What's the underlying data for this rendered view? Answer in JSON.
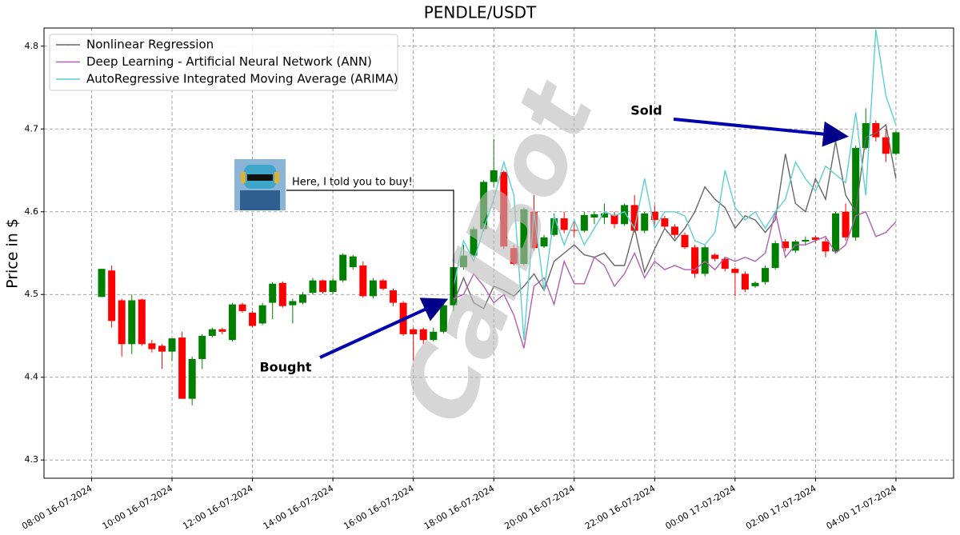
{
  "chart_data": {
    "type": "candlestick",
    "title": "PENDLE/USDT",
    "y_label": "Price in $",
    "watermark": "CalBot",
    "annotations": [
      {
        "text": "Sold"
      },
      {
        "text": "Bought"
      },
      {
        "text": "Here, I told you to buy!"
      }
    ],
    "x": [
      "2024-07-16 08:15",
      "2024-07-16 08:30",
      "2024-07-16 08:45",
      "2024-07-16 09:00",
      "2024-07-16 09:15",
      "2024-07-16 09:30",
      "2024-07-16 09:45",
      "2024-07-16 10:00",
      "2024-07-16 10:15",
      "2024-07-16 10:30",
      "2024-07-16 10:45",
      "2024-07-16 11:00",
      "2024-07-16 11:15",
      "2024-07-16 11:30",
      "2024-07-16 11:45",
      "2024-07-16 12:00",
      "2024-07-16 12:15",
      "2024-07-16 12:30",
      "2024-07-16 12:45",
      "2024-07-16 13:00",
      "2024-07-16 13:15",
      "2024-07-16 13:30",
      "2024-07-16 13:45",
      "2024-07-16 14:00",
      "2024-07-16 14:15",
      "2024-07-16 14:30",
      "2024-07-16 14:45",
      "2024-07-16 15:00",
      "2024-07-16 15:15",
      "2024-07-16 15:30",
      "2024-07-16 15:45",
      "2024-07-16 16:00",
      "2024-07-16 16:15",
      "2024-07-16 16:30",
      "2024-07-16 16:45",
      "2024-07-16 17:00",
      "2024-07-16 17:15",
      "2024-07-16 17:30",
      "2024-07-16 17:45",
      "2024-07-16 18:00",
      "2024-07-16 18:15",
      "2024-07-16 18:30",
      "2024-07-16 18:45",
      "2024-07-16 19:00",
      "2024-07-16 19:15",
      "2024-07-16 19:30",
      "2024-07-16 19:45",
      "2024-07-16 20:00",
      "2024-07-16 20:15",
      "2024-07-16 20:30",
      "2024-07-16 20:45",
      "2024-07-16 21:00",
      "2024-07-16 21:15",
      "2024-07-16 21:30",
      "2024-07-16 21:45",
      "2024-07-16 22:00",
      "2024-07-16 22:15",
      "2024-07-16 22:30",
      "2024-07-16 22:45",
      "2024-07-16 23:00",
      "2024-07-16 23:15",
      "2024-07-16 23:30",
      "2024-07-16 23:45",
      "2024-07-17 00:00",
      "2024-07-17 00:15",
      "2024-07-17 00:30",
      "2024-07-17 00:45",
      "2024-07-17 01:00",
      "2024-07-17 01:15",
      "2024-07-17 01:30",
      "2024-07-17 01:45",
      "2024-07-17 02:00",
      "2024-07-17 02:15",
      "2024-07-17 02:30",
      "2024-07-17 02:45",
      "2024-07-17 03:00",
      "2024-07-17 03:15",
      "2024-07-17 03:30",
      "2024-07-17 03:45",
      "2024-07-17 04:00"
    ],
    "open": [
      4.497,
      4.529,
      4.493,
      4.44,
      4.494,
      4.441,
      4.438,
      4.431,
      4.448,
      4.374,
      4.422,
      4.45,
      4.458,
      4.445,
      4.488,
      4.478,
      4.465,
      4.49,
      4.514,
      4.487,
      4.49,
      4.502,
      4.517,
      4.503,
      4.517,
      4.533,
      4.535,
      4.498,
      4.517,
      4.505,
      4.49,
      4.458,
      4.458,
      4.445,
      4.455,
      4.487,
      4.533,
      4.547,
      4.579,
      4.636,
      4.648,
      4.556,
      4.537,
      4.6,
      4.558,
      4.572,
      4.592,
      4.578,
      4.577,
      4.593,
      4.593,
      4.596,
      4.585,
      4.608,
      4.577,
      4.6,
      4.592,
      4.582,
      4.572,
      4.557,
      4.525,
      4.548,
      4.543,
      4.531,
      4.525,
      4.51,
      4.515,
      4.532,
      4.564,
      4.553,
      4.564,
      4.569,
      4.564,
      4.552,
      4.6,
      4.569,
      4.677,
      4.707,
      4.69,
      4.67
    ],
    "high": [
      4.531,
      4.535,
      4.495,
      4.5,
      4.495,
      4.445,
      4.44,
      4.447,
      4.455,
      4.425,
      4.452,
      4.46,
      4.46,
      4.49,
      4.49,
      4.48,
      4.49,
      4.515,
      4.516,
      4.495,
      4.503,
      4.52,
      4.518,
      4.52,
      4.55,
      4.548,
      4.54,
      4.52,
      4.519,
      4.507,
      4.492,
      4.46,
      4.46,
      4.46,
      4.49,
      4.535,
      4.56,
      4.582,
      4.638,
      4.688,
      4.65,
      4.56,
      4.605,
      4.62,
      4.572,
      4.598,
      4.6,
      4.59,
      4.6,
      4.6,
      4.61,
      4.6,
      4.61,
      4.62,
      4.6,
      4.608,
      4.595,
      4.585,
      4.575,
      4.56,
      4.56,
      4.55,
      4.545,
      4.533,
      4.528,
      4.516,
      4.535,
      4.565,
      4.567,
      4.566,
      4.57,
      4.571,
      4.568,
      4.6,
      4.61,
      4.68,
      4.725,
      4.71,
      4.7,
      4.698
    ],
    "low": [
      4.497,
      4.46,
      4.425,
      4.428,
      4.438,
      4.43,
      4.41,
      4.42,
      4.374,
      4.366,
      4.41,
      4.448,
      4.452,
      4.443,
      4.478,
      4.46,
      4.463,
      4.47,
      4.484,
      4.465,
      4.488,
      4.5,
      4.501,
      4.5,
      4.515,
      4.53,
      4.496,
      4.495,
      4.505,
      4.486,
      4.45,
      4.42,
      4.44,
      4.443,
      4.453,
      4.48,
      4.53,
      4.545,
      4.576,
      4.63,
      4.555,
      4.535,
      4.535,
      4.553,
      4.556,
      4.57,
      4.574,
      4.57,
      4.575,
      4.585,
      4.585,
      4.58,
      4.583,
      4.575,
      4.574,
      4.585,
      4.58,
      4.568,
      4.555,
      4.52,
      4.522,
      4.54,
      4.528,
      4.498,
      4.503,
      4.508,
      4.512,
      4.53,
      4.552,
      4.55,
      4.56,
      4.562,
      4.545,
      4.55,
      4.565,
      4.565,
      4.675,
      4.685,
      4.66,
      4.668
    ],
    "close": [
      4.531,
      4.468,
      4.44,
      4.493,
      4.44,
      4.434,
      4.431,
      4.447,
      4.374,
      4.422,
      4.45,
      4.458,
      4.455,
      4.488,
      4.48,
      4.462,
      4.487,
      4.513,
      4.486,
      4.492,
      4.5,
      4.517,
      4.503,
      4.517,
      4.548,
      4.546,
      4.498,
      4.517,
      4.507,
      4.49,
      4.452,
      4.452,
      4.445,
      4.455,
      4.487,
      4.533,
      4.547,
      4.579,
      4.636,
      4.65,
      4.558,
      4.537,
      4.603,
      4.556,
      4.569,
      4.592,
      4.578,
      4.577,
      4.596,
      4.597,
      4.598,
      4.585,
      4.608,
      4.577,
      4.598,
      4.59,
      4.582,
      4.572,
      4.557,
      4.525,
      4.557,
      4.543,
      4.531,
      4.526,
      4.506,
      4.514,
      4.532,
      4.562,
      4.556,
      4.564,
      4.566,
      4.566,
      4.552,
      4.598,
      4.569,
      4.677,
      4.707,
      4.69,
      4.67,
      4.696
    ],
    "up_color": "#008000",
    "down_color": "#ff0000",
    "series": [
      {
        "name": "Nonlinear Regression",
        "color": "#666666",
        "values": [
          null,
          null,
          null,
          null,
          null,
          null,
          null,
          null,
          null,
          null,
          null,
          null,
          null,
          null,
          null,
          null,
          null,
          null,
          null,
          null,
          null,
          null,
          null,
          null,
          null,
          null,
          null,
          null,
          null,
          null,
          null,
          null,
          null,
          null,
          null,
          4.49,
          4.52,
          4.49,
          4.483,
          4.51,
          4.505,
          4.498,
          4.51,
          4.525,
          4.505,
          4.54,
          4.55,
          4.56,
          4.548,
          4.545,
          4.55,
          4.535,
          4.535,
          4.58,
          4.527,
          4.555,
          4.58,
          4.565,
          4.58,
          4.6,
          4.63,
          4.615,
          4.605,
          4.58,
          4.595,
          4.59,
          4.575,
          4.59,
          4.67,
          4.61,
          4.6,
          4.64,
          4.615,
          4.685,
          4.62,
          4.6,
          4.69,
          4.695,
          4.705,
          4.64
        ]
      },
      {
        "name": "Deep Learning - Artificial Neural Network (ANN)",
        "color": "#b060b0",
        "values": [
          null,
          null,
          null,
          null,
          null,
          null,
          null,
          null,
          null,
          null,
          null,
          null,
          null,
          null,
          null,
          null,
          null,
          null,
          null,
          null,
          null,
          null,
          null,
          null,
          null,
          null,
          null,
          null,
          null,
          null,
          null,
          null,
          null,
          null,
          null,
          4.495,
          4.5,
          4.525,
          4.51,
          4.49,
          4.5,
          4.475,
          4.435,
          4.51,
          4.52,
          4.488,
          4.54,
          4.513,
          4.513,
          4.545,
          4.535,
          4.51,
          4.525,
          4.55,
          4.52,
          4.54,
          4.53,
          4.535,
          4.53,
          4.53,
          4.54,
          4.53,
          4.545,
          4.54,
          4.545,
          4.54,
          4.55,
          4.6,
          4.545,
          4.56,
          4.56,
          4.565,
          4.57,
          4.55,
          4.56,
          4.595,
          4.6,
          4.57,
          4.575,
          4.588
        ]
      },
      {
        "name": "AutoRegressive Integrated Moving Average (ARIMA)",
        "color": "#5ccfcf",
        "values": [
          null,
          null,
          null,
          null,
          null,
          null,
          null,
          null,
          null,
          null,
          null,
          null,
          null,
          null,
          null,
          null,
          null,
          null,
          null,
          null,
          null,
          null,
          null,
          null,
          null,
          null,
          null,
          null,
          null,
          null,
          null,
          null,
          null,
          null,
          null,
          4.51,
          4.565,
          4.54,
          4.58,
          4.615,
          4.66,
          4.62,
          4.445,
          4.6,
          4.505,
          4.595,
          4.56,
          4.59,
          4.56,
          4.58,
          4.6,
          4.595,
          4.6,
          4.58,
          4.64,
          4.58,
          4.6,
          4.6,
          4.595,
          4.565,
          4.56,
          4.575,
          4.65,
          4.605,
          4.59,
          4.6,
          4.58,
          4.6,
          4.615,
          4.66,
          4.64,
          4.625,
          4.655,
          4.645,
          4.635,
          4.72,
          4.62,
          4.82,
          4.74,
          4.705
        ]
      }
    ],
    "xlim": [
      "2024-07-16 06:49",
      "2024-07-17 05:26"
    ],
    "xticks": [
      {
        "value": "2024-07-16 08:00",
        "label": "08:00 16-07-2024"
      },
      {
        "value": "2024-07-16 10:00",
        "label": "10:00 16-07-2024"
      },
      {
        "value": "2024-07-16 12:00",
        "label": "12:00 16-07-2024"
      },
      {
        "value": "2024-07-16 14:00",
        "label": "14:00 16-07-2024"
      },
      {
        "value": "2024-07-16 16:00",
        "label": "16:00 16-07-2024"
      },
      {
        "value": "2024-07-16 18:00",
        "label": "18:00 16-07-2024"
      },
      {
        "value": "2024-07-16 20:00",
        "label": "20:00 16-07-2024"
      },
      {
        "value": "2024-07-16 22:00",
        "label": "22:00 16-07-2024"
      },
      {
        "value": "2024-07-17 00:00",
        "label": "00:00 17-07-2024"
      },
      {
        "value": "2024-07-17 02:00",
        "label": "02:00 17-07-2024"
      },
      {
        "value": "2024-07-17 04:00",
        "label": "04:00 17-07-2024"
      }
    ],
    "ylim": [
      4.278,
      4.822
    ],
    "yticks": [
      4.3,
      4.4,
      4.5,
      4.6,
      4.7,
      4.8
    ],
    "grid": true,
    "legend": "upper left"
  }
}
